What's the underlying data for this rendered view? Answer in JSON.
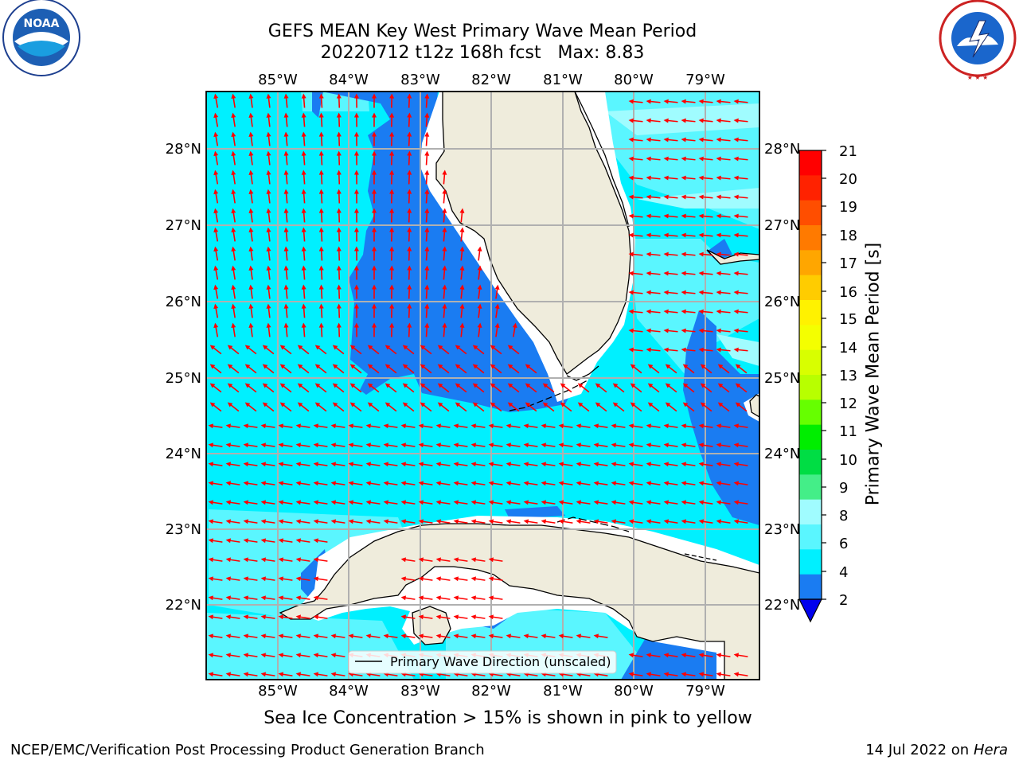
{
  "header": {
    "title_line1": "GEFS MEAN Key West Primary Wave Mean Period",
    "title_line2": "20220712 t12z 168h fcst   Max: 8.83"
  },
  "logos": {
    "left": "NOAA",
    "right": "NATIONAL WEATHER SERVICE"
  },
  "map": {
    "lon_labels": [
      "85°W",
      "84°W",
      "83°W",
      "82°W",
      "81°W",
      "80°W",
      "79°W"
    ],
    "lat_labels": [
      "28°N",
      "27°N",
      "26°N",
      "25°N",
      "24°N",
      "23°N",
      "22°N"
    ],
    "legend_label": "Primary Wave Direction (unscaled)",
    "colors": {
      "land": "#efecdc",
      "sea_2_4": "#1a7cf2",
      "sea_4_6": "#00f0ff",
      "sea_6_8": "#5af6ff",
      "sea_8_9": "#a0fcff",
      "arrow": "#ff0000",
      "grid": "#b0b0b0"
    }
  },
  "colorbar": {
    "label": "Primary Wave Mean Period [s]",
    "ticks": [
      "21",
      "20",
      "19",
      "18",
      "17",
      "16",
      "15",
      "14",
      "13",
      "12",
      "11",
      "10",
      "9",
      "8",
      "6",
      "4",
      "2"
    ],
    "colors": [
      "#ff0000",
      "#ff2200",
      "#ff4e00",
      "#ff7a00",
      "#ffa600",
      "#ffcc00",
      "#fff200",
      "#f4ff00",
      "#d8ff00",
      "#b8ff00",
      "#66ff00",
      "#00ee00",
      "#00dd44",
      "#44ee88",
      "#a0fcff",
      "#5af6ff",
      "#00f0ff",
      "#1a7cf2"
    ],
    "under_color": "#0000ee"
  },
  "footer": {
    "note": "Sea Ice Concentration > 15% is shown in pink to yellow",
    "left": "NCEP/EMC/Verification Post Processing Product Generation Branch",
    "right_date": "14 Jul 2022 on ",
    "right_host": "Hera"
  }
}
